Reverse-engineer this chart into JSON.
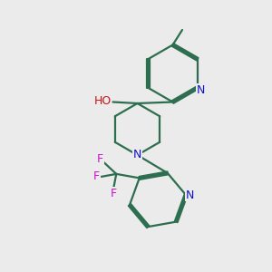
{
  "bg_color": "#ebebeb",
  "bond_color": "#2d6e50",
  "bond_width": 1.6,
  "N_color": "#1111cc",
  "O_color": "#cc1111",
  "F_color": "#cc11cc",
  "figsize": [
    3.0,
    3.0
  ],
  "dpi": 100,
  "xlim": [
    0,
    10
  ],
  "ylim": [
    0,
    10
  ]
}
